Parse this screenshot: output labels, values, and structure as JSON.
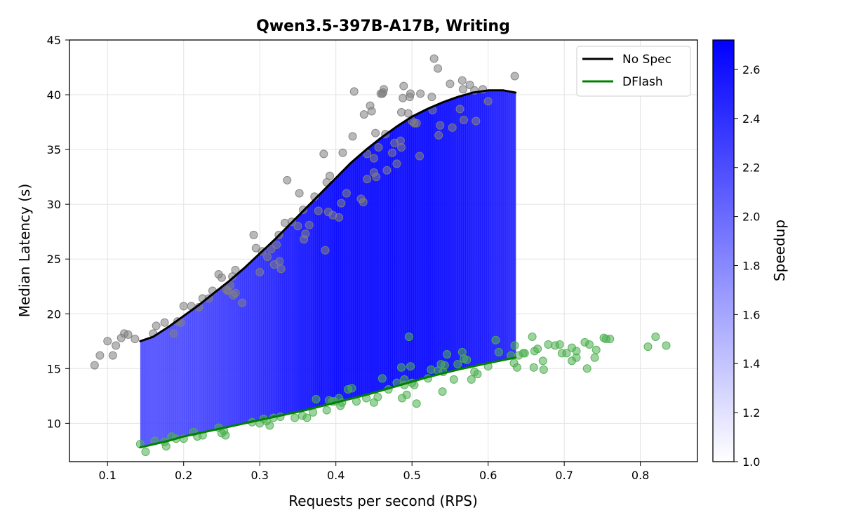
{
  "chart_data": {
    "type": "scatter",
    "title": "Qwen3.5-397B-A17B, Writing",
    "xlabel": "Requests per second (RPS)",
    "ylabel": "Median Latency (s)",
    "xlim": [
      0.05,
      0.875
    ],
    "ylim": [
      6.5,
      45
    ],
    "xticks": [
      0.1,
      0.2,
      0.3,
      0.4,
      0.5,
      0.6,
      0.7,
      0.8
    ],
    "yticks": [
      10,
      15,
      20,
      25,
      30,
      35,
      40,
      45
    ],
    "grid": true,
    "legend_position": "top-right",
    "colorbar": {
      "label": "Speedup",
      "range": [
        1.0,
        2.72
      ],
      "ticks": [
        1.0,
        1.2,
        1.4,
        1.6,
        1.8,
        2.0,
        2.2,
        2.4,
        2.6
      ],
      "colors": [
        "#ffffff",
        "#0000ff"
      ]
    },
    "series": [
      {
        "name": "No Spec",
        "color": "#000000",
        "scatter_color": "#808080",
        "points": [
          [
            0.083,
            15.3
          ],
          [
            0.09,
            16.2
          ],
          [
            0.1,
            17.5
          ],
          [
            0.107,
            16.2
          ],
          [
            0.111,
            17.1
          ],
          [
            0.118,
            17.8
          ],
          [
            0.122,
            18.2
          ],
          [
            0.127,
            18.1
          ],
          [
            0.136,
            17.7
          ],
          [
            0.16,
            18.2
          ],
          [
            0.164,
            18.9
          ],
          [
            0.175,
            19.2
          ],
          [
            0.187,
            18.2
          ],
          [
            0.192,
            19.3
          ],
          [
            0.196,
            19.2
          ],
          [
            0.2,
            20.7
          ],
          [
            0.21,
            20.7
          ],
          [
            0.22,
            20.6
          ],
          [
            0.225,
            21.4
          ],
          [
            0.233,
            21.4
          ],
          [
            0.238,
            22.1
          ],
          [
            0.246,
            23.6
          ],
          [
            0.25,
            23.3
          ],
          [
            0.256,
            22.2
          ],
          [
            0.258,
            22.1
          ],
          [
            0.261,
            22.6
          ],
          [
            0.264,
            23.4
          ],
          [
            0.265,
            21.7
          ],
          [
            0.268,
            24.0
          ],
          [
            0.268,
            21.9
          ],
          [
            0.277,
            21.0
          ],
          [
            0.292,
            27.2
          ],
          [
            0.295,
            26.0
          ],
          [
            0.3,
            23.8
          ],
          [
            0.303,
            25.7
          ],
          [
            0.31,
            25.2
          ],
          [
            0.315,
            25.9
          ],
          [
            0.319,
            24.5
          ],
          [
            0.322,
            26.3
          ],
          [
            0.325,
            27.2
          ],
          [
            0.326,
            24.8
          ],
          [
            0.328,
            24.1
          ],
          [
            0.333,
            28.3
          ],
          [
            0.336,
            32.2
          ],
          [
            0.342,
            28.4
          ],
          [
            0.35,
            28.0
          ],
          [
            0.352,
            31.0
          ],
          [
            0.357,
            29.5
          ],
          [
            0.358,
            26.8
          ],
          [
            0.36,
            27.3
          ],
          [
            0.365,
            28.1
          ],
          [
            0.372,
            30.7
          ],
          [
            0.377,
            29.4
          ],
          [
            0.384,
            34.6
          ],
          [
            0.386,
            25.8
          ],
          [
            0.388,
            32.0
          ],
          [
            0.39,
            29.3
          ],
          [
            0.392,
            32.6
          ],
          [
            0.396,
            29.0
          ],
          [
            0.404,
            28.8
          ],
          [
            0.407,
            30.1
          ],
          [
            0.409,
            34.7
          ],
          [
            0.414,
            31.0
          ],
          [
            0.422,
            36.2
          ],
          [
            0.424,
            40.3
          ],
          [
            0.433,
            30.5
          ],
          [
            0.436,
            30.2
          ],
          [
            0.437,
            38.2
          ],
          [
            0.441,
            34.6
          ],
          [
            0.441,
            32.3
          ],
          [
            0.445,
            39.0
          ],
          [
            0.447,
            38.5
          ],
          [
            0.45,
            32.9
          ],
          [
            0.45,
            34.2
          ],
          [
            0.452,
            36.5
          ],
          [
            0.453,
            32.5
          ],
          [
            0.456,
            35.2
          ],
          [
            0.459,
            40.1
          ],
          [
            0.461,
            40.1
          ],
          [
            0.462,
            40.2
          ],
          [
            0.463,
            40.5
          ],
          [
            0.465,
            36.4
          ],
          [
            0.467,
            33.1
          ],
          [
            0.474,
            34.7
          ],
          [
            0.477,
            35.6
          ],
          [
            0.48,
            33.7
          ],
          [
            0.485,
            35.8
          ],
          [
            0.486,
            38.4
          ],
          [
            0.486,
            35.2
          ],
          [
            0.488,
            39.7
          ],
          [
            0.489,
            40.8
          ],
          [
            0.495,
            38.3
          ],
          [
            0.497,
            39.8
          ],
          [
            0.498,
            40.1
          ],
          [
            0.5,
            37.6
          ],
          [
            0.503,
            37.4
          ],
          [
            0.506,
            37.4
          ],
          [
            0.51,
            34.4
          ],
          [
            0.511,
            40.1
          ],
          [
            0.526,
            39.8
          ],
          [
            0.527,
            38.6
          ],
          [
            0.529,
            43.3
          ],
          [
            0.534,
            42.4
          ],
          [
            0.535,
            36.3
          ],
          [
            0.537,
            37.2
          ],
          [
            0.55,
            41.0
          ],
          [
            0.553,
            37.0
          ],
          [
            0.563,
            38.7
          ],
          [
            0.566,
            41.3
          ],
          [
            0.567,
            40.5
          ],
          [
            0.568,
            37.7
          ],
          [
            0.576,
            40.9
          ],
          [
            0.582,
            40.4
          ],
          [
            0.584,
            37.6
          ],
          [
            0.593,
            40.5
          ],
          [
            0.6,
            39.4
          ],
          [
            0.635,
            41.7
          ]
        ]
      },
      {
        "name": "DFlash",
        "color": "#008000",
        "scatter_color": "#4caf50",
        "points": [
          [
            0.143,
            8.1
          ],
          [
            0.15,
            7.4
          ],
          [
            0.162,
            8.4
          ],
          [
            0.175,
            8.3
          ],
          [
            0.177,
            7.9
          ],
          [
            0.184,
            8.8
          ],
          [
            0.19,
            8.6
          ],
          [
            0.2,
            8.6
          ],
          [
            0.213,
            9.2
          ],
          [
            0.218,
            8.8
          ],
          [
            0.225,
            8.9
          ],
          [
            0.246,
            9.6
          ],
          [
            0.25,
            9.1
          ],
          [
            0.253,
            9.3
          ],
          [
            0.255,
            8.9
          ],
          [
            0.29,
            10.1
          ],
          [
            0.3,
            10.0
          ],
          [
            0.305,
            10.4
          ],
          [
            0.309,
            10.2
          ],
          [
            0.313,
            9.8
          ],
          [
            0.318,
            10.5
          ],
          [
            0.327,
            10.6
          ],
          [
            0.346,
            10.5
          ],
          [
            0.356,
            10.7
          ],
          [
            0.362,
            10.5
          ],
          [
            0.37,
            11.0
          ],
          [
            0.374,
            12.2
          ],
          [
            0.388,
            11.2
          ],
          [
            0.391,
            12.1
          ],
          [
            0.395,
            12.0
          ],
          [
            0.398,
            12.0
          ],
          [
            0.404,
            12.3
          ],
          [
            0.406,
            11.6
          ],
          [
            0.408,
            11.9
          ],
          [
            0.416,
            13.1
          ],
          [
            0.421,
            13.2
          ],
          [
            0.427,
            12.0
          ],
          [
            0.44,
            12.3
          ],
          [
            0.45,
            11.9
          ],
          [
            0.455,
            12.4
          ],
          [
            0.461,
            14.1
          ],
          [
            0.469,
            13.1
          ],
          [
            0.48,
            13.7
          ],
          [
            0.486,
            15.1
          ],
          [
            0.487,
            12.3
          ],
          [
            0.49,
            14.0
          ],
          [
            0.49,
            13.5
          ],
          [
            0.493,
            12.6
          ],
          [
            0.496,
            17.9
          ],
          [
            0.498,
            15.2
          ],
          [
            0.5,
            13.7
          ],
          [
            0.503,
            13.5
          ],
          [
            0.506,
            11.8
          ],
          [
            0.521,
            14.1
          ],
          [
            0.525,
            14.9
          ],
          [
            0.534,
            14.8
          ],
          [
            0.538,
            15.4
          ],
          [
            0.54,
            12.9
          ],
          [
            0.541,
            14.7
          ],
          [
            0.543,
            15.3
          ],
          [
            0.546,
            16.3
          ],
          [
            0.555,
            14.0
          ],
          [
            0.56,
            15.4
          ],
          [
            0.566,
            16.5
          ],
          [
            0.568,
            15.9
          ],
          [
            0.572,
            15.8
          ],
          [
            0.578,
            14.0
          ],
          [
            0.582,
            14.7
          ],
          [
            0.586,
            14.5
          ],
          [
            0.6,
            15.2
          ],
          [
            0.61,
            17.6
          ],
          [
            0.614,
            16.5
          ],
          [
            0.63,
            16.2
          ],
          [
            0.634,
            15.5
          ],
          [
            0.635,
            17.1
          ],
          [
            0.638,
            15.1
          ],
          [
            0.64,
            16.2
          ],
          [
            0.646,
            16.4
          ],
          [
            0.648,
            16.4
          ],
          [
            0.658,
            17.9
          ],
          [
            0.66,
            15.1
          ],
          [
            0.661,
            16.6
          ],
          [
            0.665,
            16.8
          ],
          [
            0.672,
            15.7
          ],
          [
            0.673,
            14.9
          ],
          [
            0.679,
            17.2
          ],
          [
            0.688,
            17.1
          ],
          [
            0.694,
            17.2
          ],
          [
            0.697,
            16.4
          ],
          [
            0.703,
            16.4
          ],
          [
            0.71,
            16.9
          ],
          [
            0.71,
            15.7
          ],
          [
            0.716,
            16.6
          ],
          [
            0.716,
            16.0
          ],
          [
            0.727,
            17.4
          ],
          [
            0.73,
            15.0
          ],
          [
            0.733,
            17.2
          ],
          [
            0.74,
            16.0
          ],
          [
            0.742,
            16.7
          ],
          [
            0.752,
            17.8
          ],
          [
            0.755,
            17.7
          ],
          [
            0.76,
            17.7
          ],
          [
            0.81,
            17.0
          ],
          [
            0.82,
            17.9
          ],
          [
            0.834,
            17.1
          ]
        ]
      }
    ],
    "fit_curves": {
      "x_range": [
        0.143,
        0.636
      ],
      "no_spec_points": [
        [
          0.143,
          17.5
        ],
        [
          0.16,
          17.9
        ],
        [
          0.18,
          18.8
        ],
        [
          0.2,
          19.8
        ],
        [
          0.22,
          20.8
        ],
        [
          0.24,
          21.9
        ],
        [
          0.26,
          23.0
        ],
        [
          0.28,
          24.2
        ],
        [
          0.3,
          25.5
        ],
        [
          0.32,
          26.8
        ],
        [
          0.34,
          28.2
        ],
        [
          0.36,
          29.6
        ],
        [
          0.38,
          31.0
        ],
        [
          0.4,
          32.4
        ],
        [
          0.42,
          33.8
        ],
        [
          0.44,
          35.0
        ],
        [
          0.46,
          36.1
        ],
        [
          0.48,
          37.1
        ],
        [
          0.5,
          38.0
        ],
        [
          0.52,
          38.7
        ],
        [
          0.54,
          39.3
        ],
        [
          0.56,
          39.8
        ],
        [
          0.58,
          40.2
        ],
        [
          0.6,
          40.4
        ],
        [
          0.62,
          40.4
        ],
        [
          0.636,
          40.2
        ]
      ],
      "dflash_points": [
        [
          0.143,
          7.8
        ],
        [
          0.18,
          8.4
        ],
        [
          0.2,
          8.8
        ],
        [
          0.24,
          9.4
        ],
        [
          0.28,
          10.0
        ],
        [
          0.32,
          10.6
        ],
        [
          0.36,
          11.2
        ],
        [
          0.4,
          11.9
        ],
        [
          0.44,
          12.6
        ],
        [
          0.48,
          13.4
        ],
        [
          0.52,
          14.2
        ],
        [
          0.56,
          14.9
        ],
        [
          0.6,
          15.5
        ],
        [
          0.636,
          16.0
        ]
      ]
    }
  }
}
